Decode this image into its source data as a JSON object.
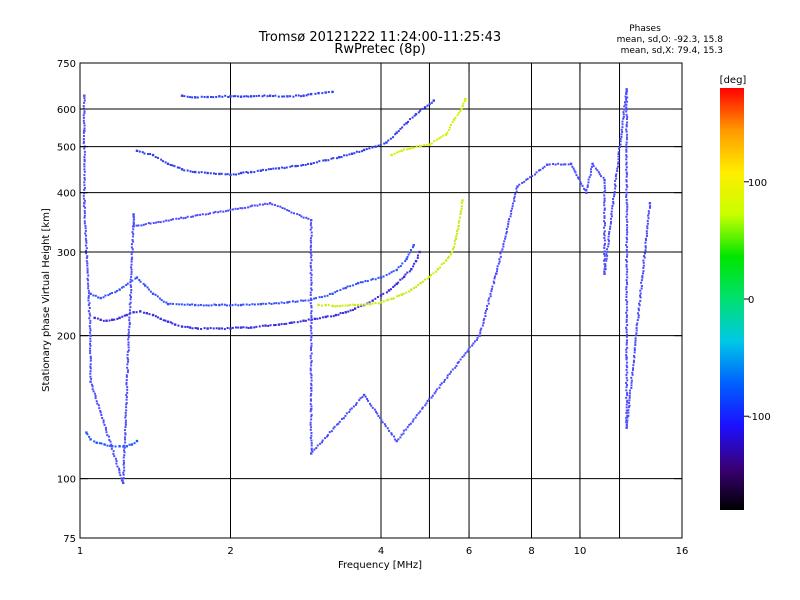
{
  "chart_data": {
    "type": "scatter",
    "title": "Tromsø 20121222 11:24:00-11:25:43",
    "subtitle": "RwPretec (8p)",
    "xlabel": "Frequency [MHz]",
    "ylabel": "Stationary phase Virtual Height [km]",
    "x_scale": "log",
    "y_scale": "log",
    "xlim": [
      1,
      16
    ],
    "ylim": [
      75,
      750
    ],
    "x_ticks": [
      1,
      2,
      4,
      6,
      8,
      10,
      16
    ],
    "x_tick_labels": [
      "1",
      "2",
      "4",
      "6",
      "8",
      "10",
      "16"
    ],
    "x_gridlines": [
      2,
      4,
      5,
      6,
      8,
      10,
      12
    ],
    "y_ticks": [
      75,
      100,
      200,
      300,
      400,
      500,
      600,
      750
    ],
    "y_tick_labels": [
      "75",
      "100",
      "200",
      "300",
      "400",
      "500",
      "600",
      "750"
    ],
    "y_gridlines": [
      100,
      200,
      300,
      400,
      500,
      600
    ],
    "grid": true,
    "legend": {
      "title": "Phases",
      "lines": [
        "mean, sd,O: -92.3, 15.8",
        "mean, sd,X: 79.4, 15.3"
      ],
      "placement": "top-right"
    },
    "colorbar": {
      "label": "[deg]",
      "range": [
        -180,
        180
      ],
      "ticks": [
        -100,
        0,
        100
      ],
      "tick_labels": [
        "-100",
        "0",
        "100"
      ],
      "colormap": [
        "#000000",
        "#3a0078",
        "#1b10ff",
        "#0060ff",
        "#00c8e6",
        "#00e070",
        "#00e600",
        "#c8ff00",
        "#ffee00",
        "#ff9900",
        "#ff0000"
      ]
    },
    "series": [
      {
        "role": "O-mode lower F trace",
        "color": "#3a2ce0",
        "points": [
          [
            1.07,
            218
          ],
          [
            1.1,
            216
          ],
          [
            1.13,
            215
          ],
          [
            1.16,
            216
          ],
          [
            1.2,
            218
          ],
          [
            1.24,
            221
          ],
          [
            1.28,
            224
          ],
          [
            1.32,
            225
          ],
          [
            1.36,
            223
          ],
          [
            1.4,
            221
          ],
          [
            1.45,
            217
          ],
          [
            1.5,
            214
          ],
          [
            1.55,
            211
          ],
          [
            1.6,
            209
          ],
          [
            1.66,
            208
          ],
          [
            1.72,
            207
          ],
          [
            1.8,
            207
          ],
          [
            1.9,
            207
          ],
          [
            2.0,
            207
          ],
          [
            2.1,
            208
          ],
          [
            2.2,
            208
          ],
          [
            2.35,
            210
          ],
          [
            2.5,
            211
          ],
          [
            2.65,
            213
          ],
          [
            2.8,
            215
          ],
          [
            2.95,
            217
          ],
          [
            3.1,
            219
          ],
          [
            3.25,
            221
          ],
          [
            3.4,
            224
          ],
          [
            3.55,
            228
          ],
          [
            3.7,
            232
          ],
          [
            3.85,
            237
          ],
          [
            4.0,
            243
          ],
          [
            4.15,
            249
          ],
          [
            4.3,
            257
          ],
          [
            4.45,
            266
          ],
          [
            4.6,
            276
          ],
          [
            4.7,
            287
          ],
          [
            4.78,
            300
          ]
        ]
      },
      {
        "role": "X-mode trace",
        "color": "#c8ec10",
        "points": [
          [
            3.0,
            232
          ],
          [
            3.1,
            232
          ],
          [
            3.2,
            231
          ],
          [
            3.6,
            232
          ],
          [
            3.8,
            233
          ],
          [
            4.0,
            235
          ],
          [
            4.2,
            239
          ],
          [
            4.4,
            244
          ],
          [
            4.6,
            250
          ],
          [
            4.8,
            258
          ],
          [
            5.0,
            266
          ],
          [
            5.2,
            276
          ],
          [
            5.4,
            288
          ],
          [
            5.55,
            300
          ],
          [
            5.65,
            320
          ],
          [
            5.72,
            340
          ],
          [
            5.78,
            365
          ],
          [
            5.82,
            385
          ]
        ]
      },
      {
        "role": "upper F-layer echoes",
        "color": "#2f3ef0",
        "points": [
          [
            1.3,
            490
          ],
          [
            1.4,
            480
          ],
          [
            1.5,
            460
          ],
          [
            1.6,
            448
          ],
          [
            1.7,
            442
          ],
          [
            1.8,
            440
          ],
          [
            1.9,
            438
          ],
          [
            2.0,
            436
          ],
          [
            2.1,
            440
          ],
          [
            2.2,
            442
          ],
          [
            2.3,
            445
          ],
          [
            2.5,
            450
          ],
          [
            2.7,
            455
          ],
          [
            2.9,
            460
          ],
          [
            3.1,
            468
          ],
          [
            3.3,
            475
          ],
          [
            3.5,
            483
          ],
          [
            3.7,
            492
          ],
          [
            3.9,
            500
          ],
          [
            4.1,
            510
          ],
          [
            4.3,
            535
          ],
          [
            4.5,
            560
          ],
          [
            4.7,
            585
          ],
          [
            4.9,
            605
          ],
          [
            5.1,
            625
          ]
        ]
      },
      {
        "role": "X-mode upper echoes",
        "color": "#d4f000",
        "points": [
          [
            4.2,
            480
          ],
          [
            4.4,
            490
          ],
          [
            4.6,
            497
          ],
          [
            5.0,
            505
          ],
          [
            5.4,
            530
          ],
          [
            5.6,
            570
          ],
          [
            5.8,
            600
          ],
          [
            5.9,
            630
          ]
        ]
      },
      {
        "role": "top spread echoes",
        "color": "#2f3ef0",
        "points": [
          [
            1.6,
            640
          ],
          [
            1.7,
            635
          ],
          [
            1.8,
            636
          ],
          [
            1.9,
            638
          ],
          [
            2.0,
            638
          ],
          [
            2.1,
            637
          ],
          [
            2.2,
            638
          ],
          [
            2.4,
            640
          ],
          [
            2.6,
            638
          ],
          [
            2.8,
            640
          ],
          [
            2.9,
            645
          ],
          [
            3.0,
            648
          ],
          [
            3.1,
            650
          ],
          [
            3.2,
            652
          ]
        ]
      },
      {
        "role": "spread F echoes",
        "color": "#3350ff",
        "points": [
          [
            1.05,
            245
          ],
          [
            1.1,
            240
          ],
          [
            1.2,
            250
          ],
          [
            1.3,
            265
          ],
          [
            1.35,
            255
          ],
          [
            1.4,
            245
          ],
          [
            1.5,
            233
          ],
          [
            1.7,
            232
          ],
          [
            1.9,
            232
          ],
          [
            2.1,
            232
          ],
          [
            2.3,
            233
          ],
          [
            2.6,
            235
          ],
          [
            2.9,
            238
          ],
          [
            3.2,
            245
          ],
          [
            3.4,
            252
          ],
          [
            3.6,
            258
          ],
          [
            4.0,
            265
          ],
          [
            4.3,
            275
          ],
          [
            4.5,
            290
          ],
          [
            4.65,
            310
          ]
        ]
      },
      {
        "role": "low E-region echoes",
        "color": "#1f55ff",
        "points": [
          [
            1.03,
            125
          ],
          [
            1.05,
            121
          ],
          [
            1.08,
            119
          ],
          [
            1.12,
            118
          ],
          [
            1.16,
            117
          ],
          [
            1.2,
            117
          ],
          [
            1.24,
            117
          ],
          [
            1.27,
            118
          ],
          [
            1.3,
            120
          ]
        ]
      },
      {
        "role": "scattered points",
        "color": "#4a4aff",
        "points": [
          [
            1.02,
            640
          ],
          [
            1.02,
            540
          ],
          [
            1.02,
            380
          ],
          [
            1.05,
            200
          ],
          [
            1.05,
            160
          ],
          [
            1.22,
            98
          ],
          [
            1.28,
            360
          ],
          [
            1.28,
            340
          ],
          [
            2.4,
            380
          ],
          [
            2.9,
            350
          ],
          [
            2.9,
            155
          ],
          [
            2.9,
            140
          ],
          [
            2.9,
            113
          ],
          [
            3.7,
            150
          ],
          [
            4.3,
            120
          ],
          [
            6.3,
            200
          ],
          [
            6.8,
            270
          ],
          [
            7.5,
            412
          ],
          [
            8.6,
            458
          ],
          [
            9.6,
            460
          ],
          [
            10.3,
            400
          ],
          [
            10.6,
            460
          ],
          [
            11.2,
            425
          ],
          [
            11.2,
            270
          ],
          [
            12.4,
            660
          ],
          [
            12.4,
            180
          ],
          [
            12.4,
            128
          ],
          [
            13.8,
            380
          ]
        ]
      }
    ]
  }
}
